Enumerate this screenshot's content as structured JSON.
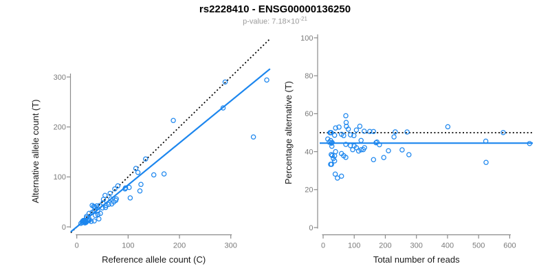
{
  "title": "rs2228410 - ENSG00000136250",
  "subtitle": {
    "prefix": "p-value: 7.18×10",
    "exponent": "-21"
  },
  "colors": {
    "points": "#1C86EE",
    "fit_line": "#1C86EE",
    "identity_line": "#000000",
    "axis_line": "#8a8a8a",
    "tick_label": "#7a7a7a",
    "axis_title": "#1a1a1a",
    "subtitle": "#9a9a9a"
  },
  "chart_data": [
    {
      "type": "scatter",
      "title": "rs2228410 - ENSG00000136250",
      "xlabel": "Reference allele count (C)",
      "ylabel": "Alternative allele count (T)",
      "xticks": [
        0,
        100,
        200,
        300
      ],
      "yticks": [
        0,
        100,
        200,
        300
      ],
      "xlim": [
        0,
        380
      ],
      "ylim": [
        0,
        378
      ],
      "grid": false,
      "identity_line": {
        "slope": 1,
        "intercept": 0,
        "style": "dotted",
        "color": "#000000"
      },
      "fit_line": {
        "slope": 0.84,
        "intercept": 0,
        "style": "solid",
        "color": "#1C86EE"
      },
      "points": [
        [
          370,
          294
        ],
        [
          344,
          180
        ],
        [
          289,
          290
        ],
        [
          285,
          238
        ],
        [
          188,
          213
        ],
        [
          170,
          106
        ],
        [
          150,
          104
        ],
        [
          134,
          136
        ],
        [
          125,
          85
        ],
        [
          123,
          72
        ],
        [
          119,
          109
        ],
        [
          115,
          117
        ],
        [
          104,
          58
        ],
        [
          102,
          79
        ],
        [
          95,
          78
        ],
        [
          94,
          76
        ],
        [
          80,
          82
        ],
        [
          77,
          56
        ],
        [
          76,
          53
        ],
        [
          74,
          76
        ],
        [
          72,
          50
        ],
        [
          68,
          46
        ],
        [
          66,
          56
        ],
        [
          65,
          67
        ],
        [
          62,
          45
        ],
        [
          57,
          43
        ],
        [
          56,
          39
        ],
        [
          55,
          63
        ],
        [
          52,
          55
        ],
        [
          51,
          48
        ],
        [
          50,
          38
        ],
        [
          46,
          27
        ],
        [
          45,
          43
        ],
        [
          43,
          16
        ],
        [
          41,
          32
        ],
        [
          41,
          25
        ],
        [
          39,
          42
        ],
        [
          36,
          23
        ],
        [
          35,
          40
        ],
        [
          34,
          32
        ],
        [
          34,
          12
        ],
        [
          33,
          41
        ],
        [
          30,
          43
        ],
        [
          30,
          29
        ],
        [
          28,
          11
        ],
        [
          24,
          27
        ],
        [
          24,
          16
        ],
        [
          24,
          13
        ],
        [
          23,
          14
        ],
        [
          21,
          12
        ],
        [
          19,
          21
        ],
        [
          19,
          18
        ],
        [
          18,
          11
        ],
        [
          18,
          9
        ],
        [
          16,
          13
        ],
        [
          16,
          12
        ],
        [
          16,
          10
        ],
        [
          16,
          8
        ],
        [
          15,
          12
        ],
        [
          13,
          13
        ],
        [
          13,
          11
        ],
        [
          12,
          12
        ],
        [
          11,
          11
        ],
        [
          11,
          9
        ],
        [
          8,
          7
        ]
      ]
    },
    {
      "type": "scatter",
      "xlabel": "Total number of reads",
      "ylabel": "Percentage alternative (T)",
      "xticks": [
        0,
        100,
        200,
        300,
        400,
        500,
        600
      ],
      "yticks": [
        0,
        20,
        40,
        60,
        80,
        100
      ],
      "xlim": [
        0,
        675
      ],
      "ylim": [
        0,
        100
      ],
      "grid": false,
      "hlines": [
        {
          "y": 50,
          "style": "dotted",
          "color": "#000000"
        },
        {
          "y": 44.5,
          "style": "solid",
          "color": "#1C86EE"
        }
      ],
      "points_note": "reads = C+T and pct = 100·T/(C+T) computed from chart 0 point pairs"
    }
  ]
}
